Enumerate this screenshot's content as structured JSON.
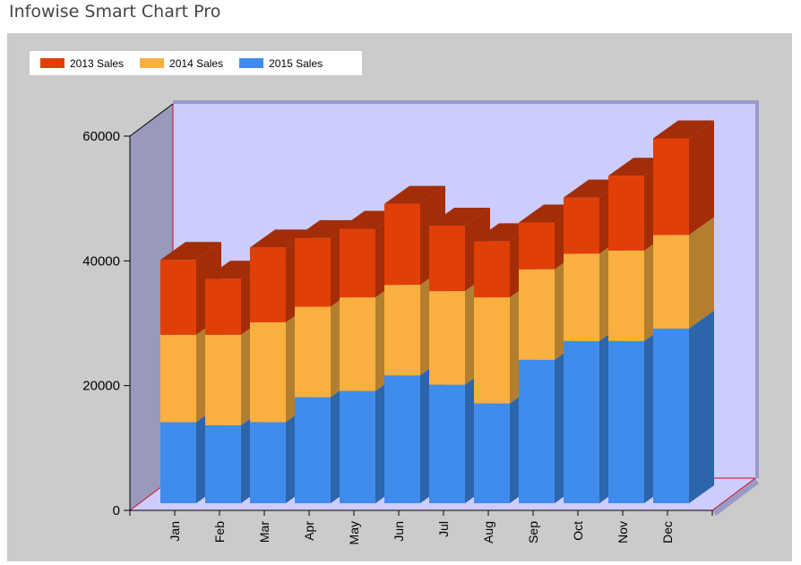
{
  "app": {
    "title": "Infowise Smart Chart Pro"
  },
  "colors": {
    "series_2013": "#e13f08",
    "series_2014": "#f9b040",
    "series_2015": "#3f8ced",
    "plot_back": "#ccccff",
    "plot_side": "#9999bb",
    "panel": "#cbcbcb",
    "axis_line": "#d01020"
  },
  "chart_data": {
    "type": "bar",
    "stacked": true,
    "three_d": true,
    "categories": [
      "Jan",
      "Feb",
      "Mar",
      "Apr",
      "May",
      "Jun",
      "Jul",
      "Aug",
      "Sep",
      "Oct",
      "Nov",
      "Dec"
    ],
    "series": [
      {
        "name": "2015 Sales",
        "values": [
          13000,
          12500,
          13000,
          17000,
          18000,
          20500,
          19000,
          16000,
          23000,
          26000,
          26000,
          28000
        ]
      },
      {
        "name": "2014 Sales",
        "values": [
          14000,
          14500,
          16000,
          14500,
          15000,
          14500,
          15000,
          17000,
          14500,
          14000,
          14500,
          15000
        ]
      },
      {
        "name": "2013 Sales",
        "values": [
          12000,
          9000,
          12000,
          11000,
          11000,
          13000,
          10500,
          9000,
          7500,
          9000,
          12000,
          15500
        ]
      }
    ],
    "yticks": [
      0,
      20000,
      40000,
      60000
    ],
    "ylim": [
      0,
      60000
    ],
    "legend_position": "top-left",
    "grid": false
  }
}
